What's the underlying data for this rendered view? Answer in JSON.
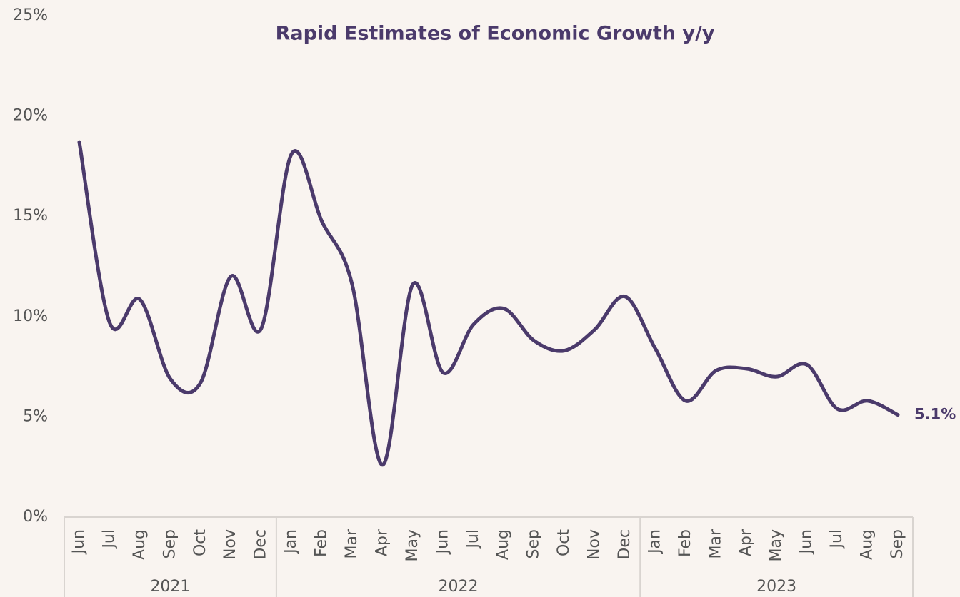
{
  "chart_data": {
    "type": "line",
    "title": "Rapid Estimates of Economic Growth y/y",
    "categories": [
      "Jun",
      "Jul",
      "Aug",
      "Sep",
      "Oct",
      "Nov",
      "Dec",
      "Jan",
      "Feb",
      "Mar",
      "Apr",
      "May",
      "Jun",
      "Jul",
      "Aug",
      "Sep",
      "Oct",
      "Nov",
      "Dec",
      "Jan",
      "Feb",
      "Mar",
      "Apr",
      "May",
      "Jun",
      "Jul",
      "Aug",
      "Sep"
    ],
    "years": [
      "2021",
      "2021",
      "2021",
      "2021",
      "2021",
      "2021",
      "2021",
      "2022",
      "2022",
      "2022",
      "2022",
      "2022",
      "2022",
      "2022",
      "2022",
      "2022",
      "2022",
      "2022",
      "2022",
      "2023",
      "2023",
      "2023",
      "2023",
      "2023",
      "2023",
      "2023",
      "2023",
      "2023"
    ],
    "values": [
      18.7,
      9.7,
      10.85,
      6.9,
      6.7,
      12.0,
      9.4,
      18.1,
      14.75,
      11.6,
      2.6,
      11.6,
      7.2,
      9.6,
      10.4,
      8.8,
      8.3,
      9.35,
      11.0,
      8.4,
      5.8,
      7.3,
      7.4,
      7.0,
      7.6,
      5.4,
      5.8,
      5.1
    ],
    "end_label": "5.1%",
    "color": "#4b3a6b",
    "ylim": [
      0,
      25
    ],
    "yticks": [
      {
        "value": 0,
        "label": "0%"
      },
      {
        "value": 5,
        "label": "5%"
      },
      {
        "value": 10,
        "label": "10%"
      },
      {
        "value": 15,
        "label": "15%"
      },
      {
        "value": 20,
        "label": "20%"
      },
      {
        "value": 25,
        "label": "25%"
      }
    ]
  }
}
